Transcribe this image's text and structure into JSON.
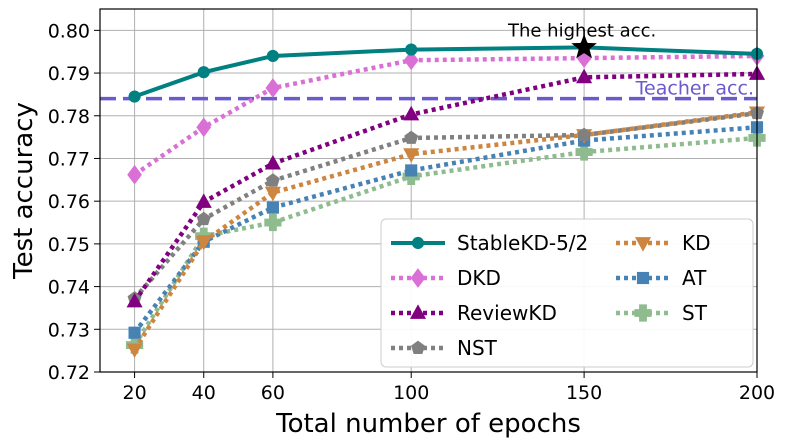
{
  "chart_data": {
    "type": "line",
    "xlabel": "Total number of epochs",
    "ylabel": "Test accuracy",
    "x": [
      20,
      40,
      60,
      100,
      150,
      200
    ],
    "xlim": [
      10,
      200
    ],
    "ylim": [
      0.72,
      0.805
    ],
    "x_ticks": [
      20,
      40,
      60,
      100,
      150,
      200
    ],
    "y_ticks": [
      "0.72",
      "0.73",
      "0.74",
      "0.75",
      "0.76",
      "0.77",
      "0.78",
      "0.79",
      "0.80"
    ],
    "grid": true,
    "legend_position": "lower-right",
    "series": [
      {
        "name": "StableKD-5/2",
        "color": "#008080",
        "style": "solid",
        "marker": "circle",
        "values": [
          0.7845,
          0.7902,
          0.794,
          0.7955,
          0.796,
          0.7945
        ]
      },
      {
        "name": "DKD",
        "color": "#DA70D6",
        "style": "dotted",
        "marker": "diamond",
        "values": [
          0.7662,
          0.7773,
          0.7865,
          0.793,
          0.7935,
          0.794
        ]
      },
      {
        "name": "ReviewKD",
        "color": "#800080",
        "style": "dotted",
        "marker": "triangle-up",
        "values": [
          0.7365,
          0.7598,
          0.7688,
          0.7803,
          0.789,
          0.7898
        ]
      },
      {
        "name": "NST",
        "color": "#808080",
        "style": "dotted",
        "marker": "pentagon",
        "values": [
          0.7372,
          0.7558,
          0.7648,
          0.7748,
          0.7755,
          0.7806
        ]
      },
      {
        "name": "KD",
        "color": "#CD853F",
        "style": "dotted",
        "marker": "triangle-down",
        "values": [
          0.7253,
          0.7505,
          0.762,
          0.771,
          0.7755,
          0.7808
        ]
      },
      {
        "name": "AT",
        "color": "#4682B4",
        "style": "dotted",
        "marker": "square",
        "values": [
          0.7292,
          0.7505,
          0.7585,
          0.7672,
          0.7742,
          0.7773
        ]
      },
      {
        "name": "ST",
        "color": "#8FBC8F",
        "style": "dotted",
        "marker": "plus",
        "values": [
          0.7263,
          0.7518,
          0.755,
          0.7658,
          0.7715,
          0.7748
        ]
      }
    ],
    "reference_line": {
      "label": "Teacher acc.",
      "value": 0.784,
      "color": "#6A5ACD"
    },
    "annotations": [
      {
        "text": "The highest acc.",
        "x": 150,
        "y": 0.796,
        "marker": "star",
        "color": "#000000"
      }
    ]
  }
}
